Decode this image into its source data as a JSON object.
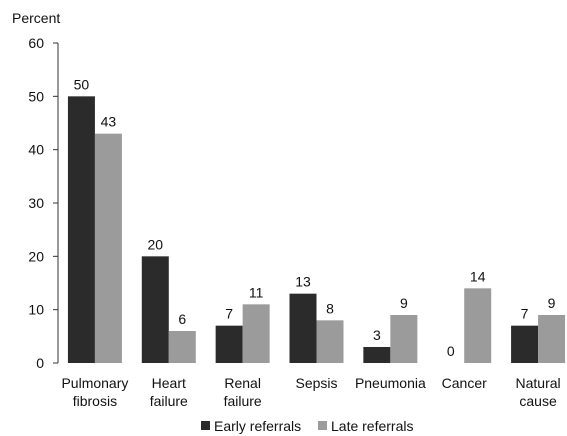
{
  "chart_data": {
    "type": "bar",
    "y_label": "Percent",
    "categories": [
      "Pulmonary fibrosis",
      "Heart failure",
      "Renal failure",
      "Sepsis",
      "Pneumonia",
      "Cancer",
      "Natural cause"
    ],
    "series": [
      {
        "name": "Early referrals",
        "color": "#2b2b2b",
        "values": [
          50,
          20,
          7,
          13,
          3,
          0,
          7
        ]
      },
      {
        "name": "Late referrals",
        "color": "#9b9b9b",
        "values": [
          43,
          6,
          11,
          8,
          9,
          14,
          9
        ]
      }
    ],
    "ylim": [
      0,
      60
    ],
    "yticks": [
      0,
      10,
      20,
      30,
      40,
      50,
      60
    ],
    "grid": false
  }
}
